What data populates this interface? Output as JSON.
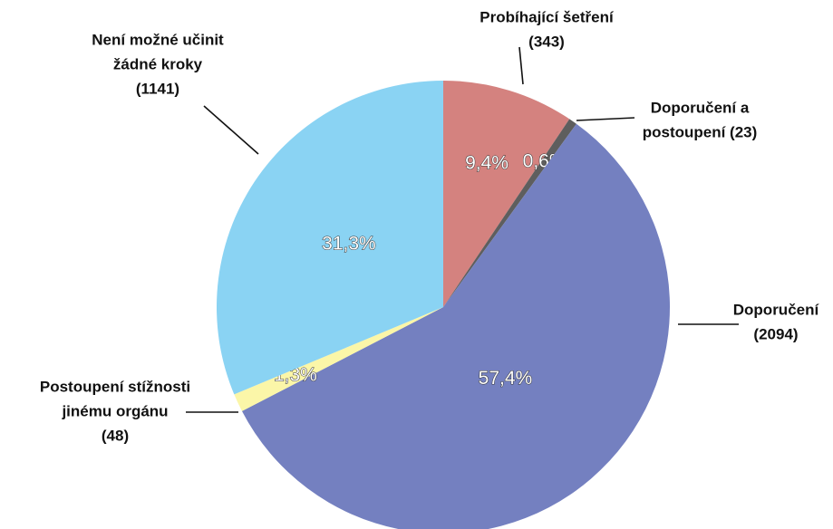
{
  "chart_data": {
    "type": "pie",
    "categories": [
      [
        "Probíhající šetření",
        "(343)"
      ],
      [
        "Doporučení a",
        "postoupení (23)"
      ],
      [
        "Doporučení",
        "(2094)"
      ],
      [
        "Postoupení stížnosti",
        "jinému orgánu",
        "(48)"
      ],
      [
        "Není možné učinit",
        "žádné kroky",
        "(1141)"
      ]
    ],
    "values": [
      9.4,
      0.6,
      57.4,
      1.3,
      31.3
    ],
    "value_labels": [
      "9,4%",
      "0,6%",
      "57,4%",
      "1,3%",
      "31,3%"
    ],
    "colors": [
      "#d4827f",
      "#5e5e5e",
      "#7480c0",
      "#fbf6a8",
      "#8ad3f3"
    ]
  }
}
